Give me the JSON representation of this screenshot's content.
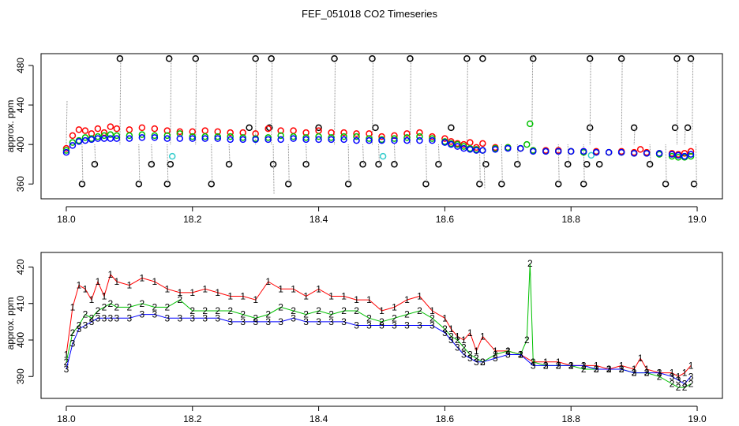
{
  "title": "FEF_051018  CO2 Timeseries",
  "colors": {
    "red": "#ff0000",
    "green": "#00c000",
    "blue": "#0000ff",
    "black": "#000000",
    "cyan": "#33cccc",
    "gray": "#888888"
  },
  "chart_data": [
    {
      "type": "scatter",
      "title": "",
      "xlabel": "",
      "ylabel": "approx. ppm",
      "xlim": [
        17.96,
        19.04
      ],
      "ylim": [
        345,
        492
      ],
      "xticks": [
        "18.0",
        "18.2",
        "18.4",
        "18.6",
        "18.8",
        "19.0"
      ],
      "yticks": [
        "360",
        "400",
        "440",
        "480"
      ],
      "grid": false,
      "legend": "none",
      "series": [
        {
          "color": "black",
          "marker": "circle",
          "x": [
            18.025,
            18.045,
            18.085,
            18.115,
            18.135,
            18.16,
            18.163,
            18.165,
            18.205,
            18.23,
            18.258,
            18.29,
            18.3,
            18.322,
            18.325,
            18.328,
            18.352,
            18.38,
            18.4,
            18.425,
            18.447,
            18.47,
            18.485,
            18.49,
            18.495,
            18.52,
            18.545,
            18.57,
            18.59,
            18.61,
            18.635,
            18.655,
            18.66,
            18.665,
            18.69,
            18.715,
            18.74,
            18.78,
            18.795,
            18.82,
            18.825,
            18.83,
            18.83,
            18.845,
            18.88,
            18.9,
            18.925,
            18.95,
            18.965,
            18.968,
            18.985,
            18.99,
            18.995
          ],
          "y": [
            360,
            380,
            487,
            360,
            380,
            360,
            487,
            380,
            487,
            360,
            380,
            417,
            487,
            417,
            487,
            380,
            360,
            380,
            417,
            487,
            360,
            380,
            487,
            417,
            380,
            380,
            487,
            360,
            380,
            417,
            487,
            360,
            487,
            380,
            360,
            380,
            487,
            360,
            380,
            360,
            380,
            487,
            417,
            380,
            487,
            417,
            380,
            360,
            417,
            487,
            417,
            487,
            360
          ]
        },
        {
          "color": "cyan",
          "marker": "circle",
          "x": [
            18.168,
            18.502,
            18.832
          ],
          "y": [
            388,
            388,
            389
          ]
        },
        {
          "color": "gray",
          "marker": "spikes",
          "x": [
            18.0,
            18.025,
            18.045,
            18.085,
            18.115,
            18.135,
            18.16,
            18.165,
            18.205,
            18.23,
            18.258,
            18.3,
            18.325,
            18.328,
            18.352,
            18.38,
            18.425,
            18.447,
            18.47,
            18.485,
            18.495,
            18.52,
            18.545,
            18.57,
            18.59,
            18.635,
            18.655,
            18.662,
            18.69,
            18.715,
            18.738,
            18.78,
            18.795,
            18.82,
            18.83,
            18.88,
            18.9,
            18.925,
            18.95,
            18.968,
            18.98,
            18.992,
            18.998
          ],
          "y": [
            444,
            360,
            380,
            487,
            360,
            380,
            360,
            487,
            487,
            360,
            380,
            487,
            487,
            350,
            360,
            380,
            487,
            360,
            380,
            487,
            380,
            380,
            487,
            360,
            380,
            487,
            360,
            355,
            360,
            380,
            492,
            360,
            380,
            360,
            487,
            487,
            417,
            380,
            360,
            487,
            417,
            487,
            355
          ]
        }
      ]
    },
    {
      "type": "line",
      "title": "",
      "xlabel": "",
      "ylabel": "approx. ppm",
      "xlim": [
        17.96,
        19.04
      ],
      "ylim": [
        384,
        424
      ],
      "xticks": [
        "18.0",
        "18.2",
        "18.4",
        "18.6",
        "18.8",
        "19.0"
      ],
      "yticks": [
        "390",
        "400",
        "410",
        "420"
      ],
      "grid": false,
      "legend": "none",
      "series": [
        {
          "name": "1",
          "color": "red",
          "marker": "1",
          "x": [
            18.0,
            18.01,
            18.02,
            18.03,
            18.04,
            18.05,
            18.06,
            18.07,
            18.08,
            18.1,
            18.12,
            18.14,
            18.16,
            18.18,
            18.2,
            18.22,
            18.24,
            18.26,
            18.28,
            18.3,
            18.32,
            18.34,
            18.36,
            18.38,
            18.4,
            18.42,
            18.44,
            18.46,
            18.48,
            18.5,
            18.52,
            18.54,
            18.56,
            18.58,
            18.6,
            18.61,
            18.62,
            18.63,
            18.64,
            18.65,
            18.66,
            18.68,
            18.7,
            18.72,
            18.74,
            18.76,
            18.78,
            18.8,
            18.82,
            18.84,
            18.86,
            18.88,
            18.9,
            18.91,
            18.92,
            18.94,
            18.96,
            18.97,
            18.98,
            18.99
          ],
          "y": [
            396,
            409,
            415,
            414,
            411,
            416,
            412,
            418,
            416,
            415,
            417,
            416,
            414,
            413,
            413,
            414,
            413,
            412,
            412,
            411,
            416,
            414,
            414,
            412,
            414,
            412,
            412,
            411,
            411,
            408,
            409,
            411,
            412,
            408,
            406,
            403,
            401,
            400,
            402,
            397,
            401,
            397,
            397,
            396,
            394,
            394,
            394,
            393,
            393,
            393,
            392,
            393,
            392,
            395,
            392,
            391,
            391,
            390,
            391,
            393
          ]
        },
        {
          "name": "2",
          "color": "green",
          "marker": "2",
          "x": [
            18.0,
            18.01,
            18.02,
            18.03,
            18.04,
            18.05,
            18.06,
            18.07,
            18.08,
            18.1,
            18.12,
            18.14,
            18.16,
            18.18,
            18.2,
            18.22,
            18.24,
            18.26,
            18.28,
            18.3,
            18.32,
            18.34,
            18.36,
            18.38,
            18.4,
            18.42,
            18.44,
            18.46,
            18.48,
            18.5,
            18.52,
            18.54,
            18.56,
            18.58,
            18.6,
            18.61,
            18.62,
            18.63,
            18.64,
            18.65,
            18.66,
            18.68,
            18.7,
            18.72,
            18.73,
            18.735,
            18.74,
            18.76,
            18.78,
            18.8,
            18.82,
            18.84,
            18.86,
            18.88,
            18.9,
            18.92,
            18.94,
            18.96,
            18.97,
            18.98,
            18.99
          ],
          "y": [
            394,
            402,
            404,
            407,
            406,
            408,
            409,
            410,
            409,
            409,
            410,
            409,
            409,
            411,
            408,
            408,
            408,
            408,
            407,
            406,
            407,
            409,
            408,
            407,
            408,
            407,
            408,
            408,
            406,
            405,
            406,
            407,
            408,
            406,
            403,
            401,
            400,
            398,
            396,
            395,
            394,
            396,
            397,
            396,
            400,
            421,
            394,
            393,
            393,
            393,
            392,
            392,
            392,
            392,
            391,
            391,
            390,
            388,
            387,
            387,
            388
          ]
        },
        {
          "name": "3",
          "color": "blue",
          "marker": "3",
          "x": [
            18.0,
            18.01,
            18.02,
            18.03,
            18.04,
            18.05,
            18.06,
            18.07,
            18.08,
            18.1,
            18.12,
            18.14,
            18.16,
            18.18,
            18.2,
            18.22,
            18.24,
            18.26,
            18.28,
            18.3,
            18.32,
            18.34,
            18.36,
            18.38,
            18.4,
            18.42,
            18.44,
            18.46,
            18.48,
            18.5,
            18.52,
            18.54,
            18.56,
            18.58,
            18.6,
            18.61,
            18.62,
            18.63,
            18.64,
            18.65,
            18.66,
            18.68,
            18.7,
            18.72,
            18.74,
            18.76,
            18.78,
            18.8,
            18.82,
            18.84,
            18.86,
            18.88,
            18.9,
            18.92,
            18.94,
            18.96,
            18.97,
            18.98,
            18.99
          ],
          "y": [
            392,
            399,
            403,
            404,
            405,
            406,
            406,
            406,
            406,
            406,
            407,
            407,
            406,
            406,
            406,
            406,
            406,
            405,
            405,
            405,
            405,
            405,
            406,
            405,
            405,
            405,
            405,
            404,
            404,
            404,
            404,
            404,
            404,
            404,
            402,
            400,
            398,
            396,
            395,
            394,
            394,
            395,
            396,
            396,
            393,
            393,
            393,
            393,
            393,
            392,
            392,
            392,
            391,
            391,
            391,
            390,
            389,
            388,
            390
          ]
        }
      ]
    }
  ]
}
